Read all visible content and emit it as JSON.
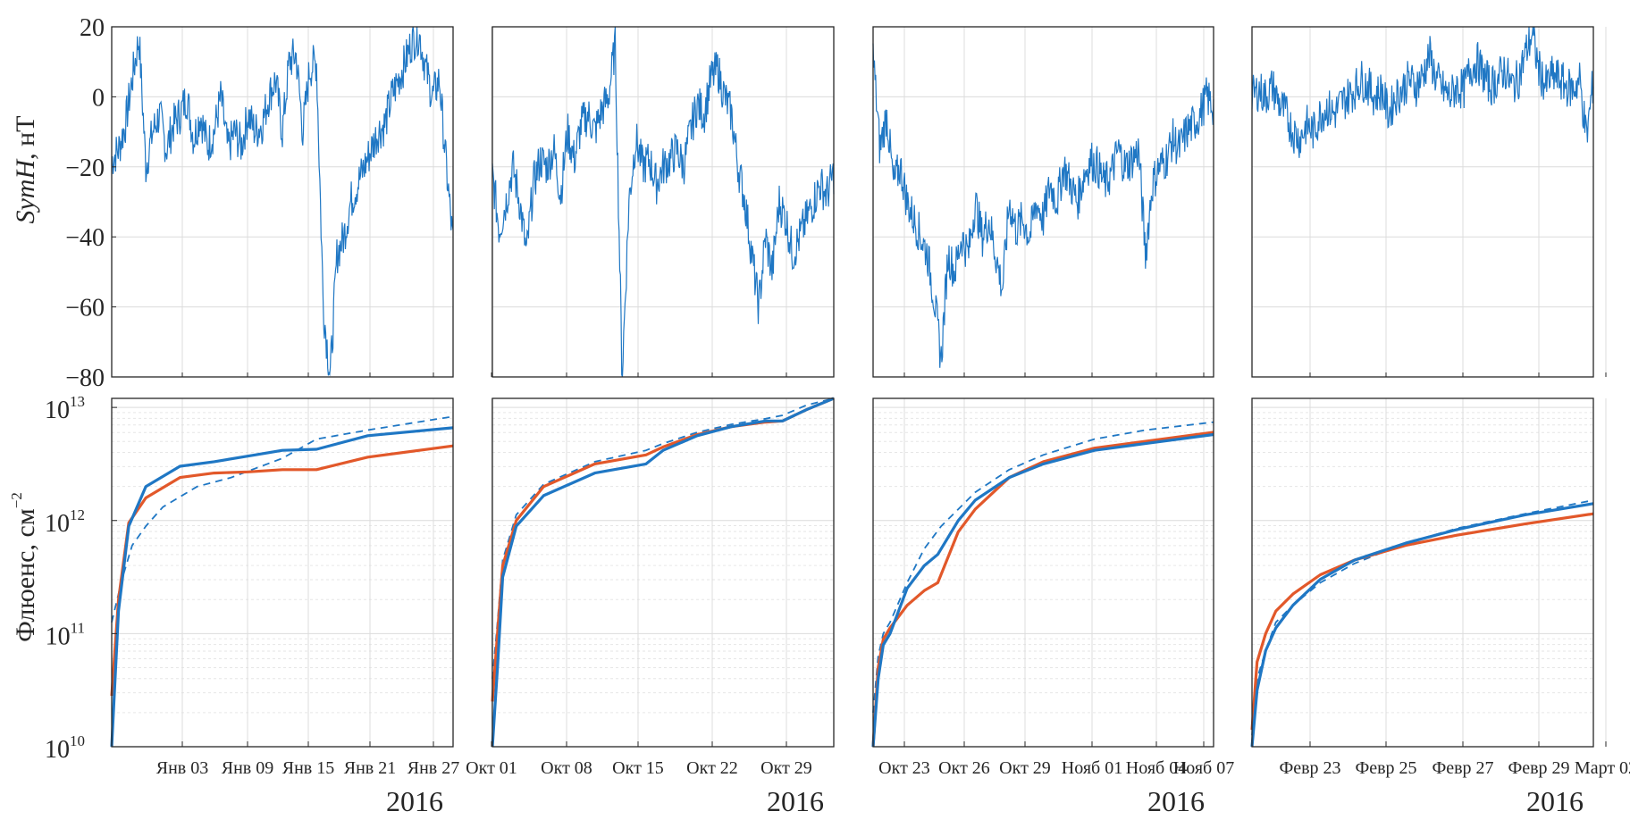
{
  "figure": {
    "colors": {
      "blue": "#1f77c4",
      "orange": "#e2582a",
      "axis": "#262626",
      "grid": "#dcdcdc",
      "grid_minor": "#e6e6e6"
    },
    "top_ylabel": {
      "italic": "SymH",
      "rest": ", нТ"
    },
    "bottom_ylabel": {
      "text": "Флюенс, см",
      "exp": "−2"
    }
  },
  "chart_data": [
    {
      "type": "line",
      "row": "top",
      "panel": 0,
      "ylabel": "SymH, нТ",
      "ylim": [
        -80,
        20
      ],
      "yticks": [
        20,
        0,
        -20,
        -40,
        -60,
        -80
      ],
      "ytick_labels": [
        "20",
        "0",
        "−20",
        "−40",
        "−60",
        "−80"
      ],
      "x": [
        0,
        1,
        2,
        3,
        4,
        5,
        6,
        7,
        8,
        9,
        10,
        11,
        12,
        13,
        14,
        15,
        16,
        17,
        18,
        19,
        20,
        21,
        22,
        23,
        24,
        25,
        26,
        27,
        28,
        29,
        30,
        31,
        32,
        33,
        34,
        35,
        36,
        37,
        38,
        39,
        40,
        41,
        42,
        43,
        44,
        45,
        46,
        47,
        48,
        49,
        50
      ],
      "values": [
        -18,
        -15,
        -8,
        5,
        17,
        -20,
        -10,
        -5,
        -15,
        -8,
        -5,
        0,
        -12,
        -5,
        -14,
        -10,
        0,
        -15,
        -10,
        -14,
        -5,
        -10,
        -8,
        0,
        5,
        -10,
        10,
        12,
        -10,
        8,
        10,
        -60,
        -80,
        -45,
        -40,
        -30,
        -25,
        -20,
        -15,
        -10,
        -8,
        0,
        5,
        10,
        16,
        18,
        8,
        0,
        5,
        -20,
        -42
      ],
      "series_name": "SymH"
    },
    {
      "type": "line",
      "row": "top",
      "panel": 1,
      "ylim": [
        -80,
        20
      ],
      "x": [
        0,
        1,
        2,
        3,
        4,
        5,
        6,
        7,
        8,
        9,
        10,
        11,
        12,
        13,
        14,
        15,
        16,
        17,
        18,
        19,
        20,
        21,
        22,
        23,
        24,
        25,
        26,
        27,
        28,
        29,
        30,
        31,
        32,
        33,
        34,
        35,
        36,
        37,
        38,
        39,
        40,
        41,
        42,
        43,
        44,
        45,
        46,
        47,
        48,
        49,
        50
      ],
      "values": [
        -22,
        -38,
        -30,
        -20,
        -30,
        -45,
        -25,
        -18,
        -20,
        -15,
        -28,
        -10,
        -18,
        -8,
        -5,
        -10,
        -4,
        0,
        15,
        -80,
        -30,
        -12,
        -20,
        -18,
        -25,
        -20,
        -18,
        -15,
        -20,
        -10,
        -2,
        -5,
        5,
        8,
        0,
        -5,
        -20,
        -30,
        -45,
        -60,
        -40,
        -50,
        -30,
        -35,
        -45,
        -40,
        -35,
        -30,
        -25,
        -28,
        -22
      ],
      "series_name": "SymH"
    },
    {
      "type": "line",
      "row": "top",
      "panel": 2,
      "ylim": [
        -80,
        20
      ],
      "x": [
        0,
        1,
        2,
        3,
        4,
        5,
        6,
        7,
        8,
        9,
        10,
        11,
        12,
        13,
        14,
        15,
        16,
        17,
        18,
        19,
        20,
        21,
        22,
        23,
        24,
        25,
        26,
        27,
        28,
        29,
        30,
        31,
        32,
        33,
        34,
        35,
        36,
        37,
        38,
        39,
        40,
        41,
        42,
        43,
        44,
        45,
        46,
        47,
        48,
        49,
        50
      ],
      "values": [
        12,
        -15,
        -5,
        -25,
        -20,
        -30,
        -35,
        -40,
        -45,
        -58,
        -75,
        -45,
        -50,
        -40,
        -45,
        -30,
        -40,
        -35,
        -45,
        -55,
        -30,
        -38,
        -35,
        -40,
        -30,
        -35,
        -25,
        -30,
        -20,
        -25,
        -30,
        -22,
        -18,
        -20,
        -25,
        -22,
        -15,
        -20,
        -18,
        -15,
        -45,
        -25,
        -20,
        -18,
        -12,
        -15,
        -10,
        -8,
        -5,
        0,
        -3
      ],
      "series_name": "SymH"
    },
    {
      "type": "line",
      "row": "top",
      "panel": 3,
      "ylim": [
        -80,
        20
      ],
      "x": [
        0,
        1,
        2,
        3,
        4,
        5,
        6,
        7,
        8,
        9,
        10,
        11,
        12,
        13,
        14,
        15,
        16,
        17,
        18,
        19,
        20,
        21,
        22,
        23,
        24,
        25,
        26,
        27,
        28,
        29,
        30,
        31,
        32,
        33,
        34,
        35,
        36,
        37,
        38,
        39,
        40,
        41,
        42,
        43,
        44,
        45,
        46,
        47,
        48,
        49,
        50
      ],
      "values": [
        0,
        2,
        0,
        3,
        -2,
        -5,
        -10,
        -12,
        -8,
        -10,
        -5,
        -3,
        -5,
        -2,
        0,
        2,
        5,
        3,
        0,
        2,
        -5,
        0,
        2,
        5,
        3,
        6,
        12,
        5,
        2,
        0,
        3,
        2,
        8,
        10,
        6,
        3,
        5,
        8,
        3,
        5,
        12,
        18,
        8,
        3,
        6,
        5,
        3,
        2,
        5,
        -12,
        5
      ],
      "series_name": "SymH"
    },
    {
      "type": "line",
      "row": "bottom",
      "panel": 0,
      "yscale": "log",
      "ylabel": "Флюенс, см^-2",
      "ylim_log10": [
        10,
        13.08
      ],
      "ytick_labels": [
        {
          "base": "10",
          "exp": "13"
        },
        {
          "base": "10",
          "exp": "12"
        },
        {
          "base": "10",
          "exp": "11"
        },
        {
          "base": "10",
          "exp": "10"
        }
      ],
      "xlabel_year": "2016",
      "xtick_labels": [
        "Янв 03",
        "Янв 09",
        "Янв 15",
        "Янв 21",
        "Янв 27"
      ],
      "series": [
        {
          "name": "blue-solid",
          "x": [
            0,
            0.02,
            0.05,
            0.1,
            0.2,
            0.3,
            0.4,
            0.5,
            0.6,
            0.75,
            1.0
          ],
          "log10_values": [
            10,
            11.2,
            11.95,
            12.3,
            12.48,
            12.52,
            12.57,
            12.62,
            12.63,
            12.75,
            12.82
          ]
        },
        {
          "name": "orange-solid",
          "x": [
            0,
            0.02,
            0.05,
            0.1,
            0.2,
            0.3,
            0.4,
            0.5,
            0.6,
            0.75,
            1.0
          ],
          "log10_values": [
            10.45,
            11.3,
            11.98,
            12.2,
            12.38,
            12.42,
            12.43,
            12.45,
            12.45,
            12.56,
            12.66
          ]
        },
        {
          "name": "blue-dashed",
          "x": [
            0,
            0.03,
            0.06,
            0.1,
            0.15,
            0.25,
            0.35,
            0.5,
            0.6,
            0.75,
            1.0
          ],
          "log10_values": [
            11.1,
            11.48,
            11.78,
            11.95,
            12.12,
            12.3,
            12.38,
            12.55,
            12.72,
            12.8,
            12.92
          ]
        }
      ]
    },
    {
      "type": "line",
      "row": "bottom",
      "panel": 1,
      "yscale": "log",
      "ylim_log10": [
        10,
        13.08
      ],
      "xlabel_year": "2016",
      "xtick_labels": [
        "Окт 01",
        "Окт 08",
        "Окт 15",
        "Окт 22",
        "Окт 29"
      ],
      "series": [
        {
          "name": "blue-solid",
          "x": [
            0,
            0.015,
            0.03,
            0.07,
            0.15,
            0.3,
            0.45,
            0.5,
            0.6,
            0.7,
            0.8,
            0.85,
            0.92,
            1.0
          ],
          "log10_values": [
            10,
            10.7,
            11.5,
            11.95,
            12.22,
            12.42,
            12.5,
            12.62,
            12.75,
            12.83,
            12.88,
            12.88,
            12.98,
            13.08
          ]
        },
        {
          "name": "orange-solid",
          "x": [
            0,
            0.015,
            0.03,
            0.07,
            0.15,
            0.3,
            0.45,
            0.5,
            0.6,
            0.7,
            0.8,
            0.85,
            0.92,
            1.0
          ],
          "log10_values": [
            10.4,
            11.0,
            11.6,
            12.0,
            12.3,
            12.5,
            12.58,
            12.65,
            12.76,
            12.83,
            12.87,
            12.88,
            12.98,
            13.08
          ]
        },
        {
          "name": "blue-dashed",
          "x": [
            0,
            0.015,
            0.03,
            0.07,
            0.15,
            0.3,
            0.45,
            0.5,
            0.6,
            0.7,
            0.8,
            0.85,
            0.92,
            1.0
          ],
          "log10_values": [
            10.6,
            11.1,
            11.65,
            12.05,
            12.32,
            12.52,
            12.62,
            12.68,
            12.78,
            12.85,
            12.9,
            12.93,
            13.02,
            13.1
          ]
        }
      ]
    },
    {
      "type": "line",
      "row": "bottom",
      "panel": 2,
      "yscale": "log",
      "ylim_log10": [
        10,
        13.08
      ],
      "xlabel_year": "2016",
      "xtick_labels": [
        "Окт 23",
        "Окт 26",
        "Окт 29",
        "Нояб 01",
        "Нояб 04",
        "Нояб 07"
      ],
      "series": [
        {
          "name": "blue-solid",
          "x": [
            0,
            0.015,
            0.03,
            0.05,
            0.1,
            0.15,
            0.19,
            0.25,
            0.3,
            0.4,
            0.5,
            0.65,
            0.8,
            1.0
          ],
          "log10_values": [
            10,
            10.6,
            10.9,
            11.0,
            11.4,
            11.6,
            11.7,
            12.0,
            12.18,
            12.38,
            12.5,
            12.62,
            12.68,
            12.76
          ]
        },
        {
          "name": "orange-solid",
          "x": [
            0,
            0.015,
            0.03,
            0.05,
            0.1,
            0.15,
            0.19,
            0.25,
            0.3,
            0.4,
            0.5,
            0.65,
            0.8,
            1.0
          ],
          "log10_values": [
            10.0,
            10.7,
            10.95,
            11.05,
            11.25,
            11.38,
            11.45,
            11.9,
            12.1,
            12.38,
            12.52,
            12.64,
            12.7,
            12.78
          ]
        },
        {
          "name": "blue-dashed",
          "x": [
            0,
            0.015,
            0.03,
            0.05,
            0.1,
            0.15,
            0.2,
            0.25,
            0.3,
            0.4,
            0.5,
            0.65,
            0.8,
            1.0
          ],
          "log10_values": [
            10.3,
            10.8,
            11.0,
            11.1,
            11.45,
            11.75,
            11.95,
            12.1,
            12.25,
            12.45,
            12.58,
            12.72,
            12.8,
            12.87
          ]
        }
      ]
    },
    {
      "type": "line",
      "row": "bottom",
      "panel": 3,
      "yscale": "log",
      "ylim_log10": [
        10,
        13.08
      ],
      "xlabel_year": "2016",
      "xtick_labels": [
        "Февр 23",
        "Февр 25",
        "Февр 27",
        "Февр 29",
        "Март 02"
      ],
      "series": [
        {
          "name": "blue-solid",
          "x": [
            0,
            0.015,
            0.04,
            0.07,
            0.12,
            0.2,
            0.3,
            0.45,
            0.6,
            0.8,
            1.0
          ],
          "log10_values": [
            10,
            10.5,
            10.85,
            11.05,
            11.25,
            11.48,
            11.65,
            11.8,
            11.92,
            12.05,
            12.15
          ]
        },
        {
          "name": "orange-solid",
          "x": [
            0,
            0.015,
            0.04,
            0.07,
            0.12,
            0.2,
            0.3,
            0.45,
            0.6,
            0.8,
            1.0
          ],
          "log10_values": [
            10.15,
            10.75,
            11.0,
            11.2,
            11.35,
            11.52,
            11.65,
            11.78,
            11.87,
            11.97,
            12.06
          ]
        },
        {
          "name": "blue-dashed",
          "x": [
            0,
            0.015,
            0.04,
            0.07,
            0.12,
            0.2,
            0.3,
            0.45,
            0.6,
            0.8,
            1.0
          ],
          "log10_values": [
            10.1,
            10.6,
            10.85,
            11.1,
            11.25,
            11.45,
            11.62,
            11.8,
            11.93,
            12.06,
            12.18
          ]
        }
      ]
    }
  ]
}
